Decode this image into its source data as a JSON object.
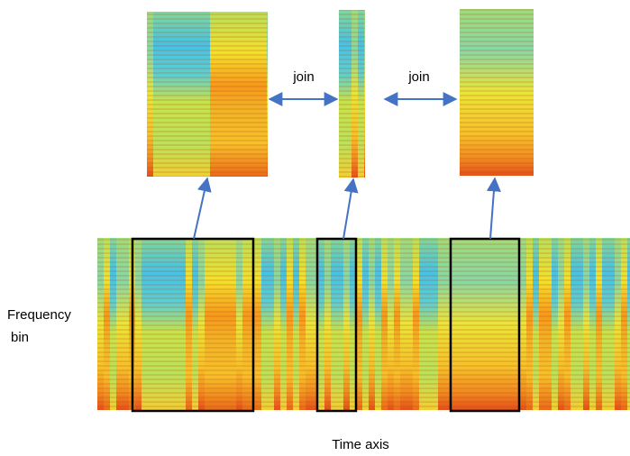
{
  "labels": {
    "join_left": "join",
    "join_right": "join",
    "y_axis": [
      "Frequency",
      "bin"
    ],
    "x_axis": "Time axis"
  }
}
